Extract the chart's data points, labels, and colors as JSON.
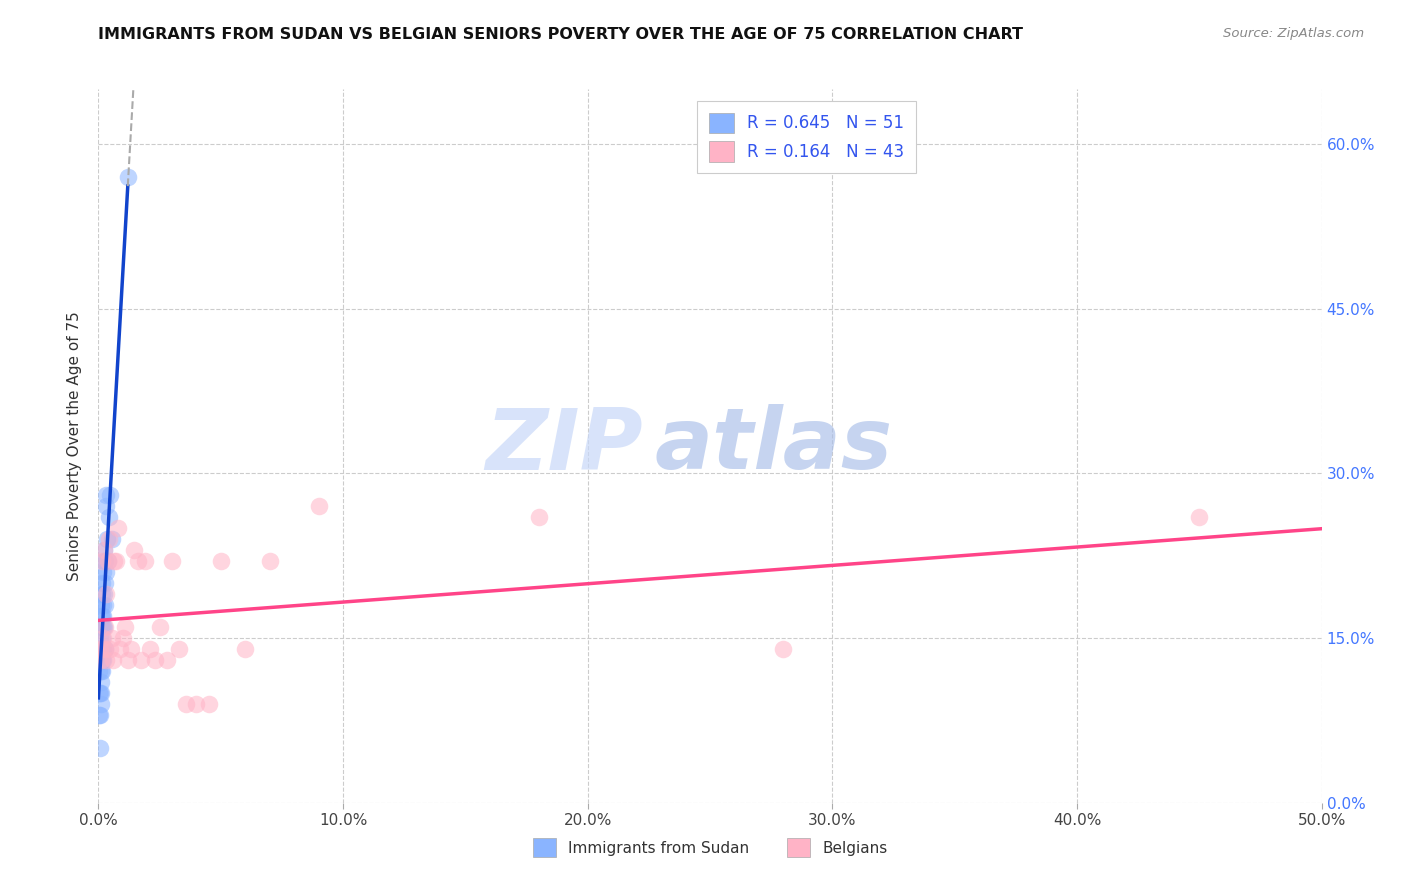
{
  "title": "IMMIGRANTS FROM SUDAN VS BELGIAN SENIORS POVERTY OVER THE AGE OF 75 CORRELATION CHART",
  "source": "Source: ZipAtlas.com",
  "ylabel_label": "Seniors Poverty Over the Age of 75",
  "xlim": [
    0.0,
    0.5
  ],
  "ylim": [
    0.0,
    0.65
  ],
  "xticks": [
    0.0,
    0.1,
    0.2,
    0.3,
    0.4,
    0.5
  ],
  "xticklabels": [
    "0.0%",
    "10.0%",
    "20.0%",
    "30.0%",
    "40.0%",
    "50.0%"
  ],
  "yticks_right": [
    0.0,
    0.15,
    0.3,
    0.45,
    0.6
  ],
  "ytick_right_labels": [
    "0.0%",
    "15.0%",
    "30.0%",
    "45.0%",
    "60.0%"
  ],
  "legend_R1": "R = 0.645",
  "legend_N1": "N = 51",
  "legend_R2": "R = 0.164",
  "legend_N2": "N = 43",
  "color_blue": "#8AB4FF",
  "color_pink": "#FFB3C6",
  "color_trendline_blue": "#1144CC",
  "color_trendline_pink": "#FF4488",
  "color_extrapolation": "#AAAAAA",
  "watermark_zip": "ZIP",
  "watermark_atlas": "atlas",
  "sudan_x": [
    0.0002,
    0.0003,
    0.0004,
    0.0005,
    0.0005,
    0.0006,
    0.0006,
    0.0007,
    0.0007,
    0.0008,
    0.0008,
    0.0009,
    0.0009,
    0.001,
    0.001,
    0.001,
    0.0011,
    0.0011,
    0.0012,
    0.0012,
    0.0013,
    0.0013,
    0.0014,
    0.0014,
    0.0015,
    0.0015,
    0.0016,
    0.0016,
    0.0017,
    0.0017,
    0.0018,
    0.0018,
    0.0019,
    0.002,
    0.0021,
    0.0022,
    0.0023,
    0.0024,
    0.0025,
    0.0026,
    0.0027,
    0.0028,
    0.003,
    0.0032,
    0.0033,
    0.0035,
    0.0038,
    0.0042,
    0.0047,
    0.0055,
    0.012
  ],
  "sudan_y": [
    0.1,
    0.08,
    0.12,
    0.05,
    0.14,
    0.13,
    0.15,
    0.1,
    0.14,
    0.08,
    0.13,
    0.09,
    0.17,
    0.12,
    0.14,
    0.16,
    0.11,
    0.18,
    0.1,
    0.14,
    0.13,
    0.16,
    0.12,
    0.17,
    0.14,
    0.19,
    0.15,
    0.2,
    0.13,
    0.18,
    0.16,
    0.21,
    0.14,
    0.17,
    0.22,
    0.19,
    0.16,
    0.23,
    0.18,
    0.2,
    0.14,
    0.22,
    0.27,
    0.28,
    0.21,
    0.24,
    0.22,
    0.26,
    0.28,
    0.24,
    0.57
  ],
  "belgian_x": [
    0.0008,
    0.0012,
    0.0015,
    0.0018,
    0.002,
    0.0022,
    0.0025,
    0.0028,
    0.003,
    0.0033,
    0.0038,
    0.0042,
    0.0048,
    0.0055,
    0.006,
    0.0065,
    0.0072,
    0.008,
    0.009,
    0.01,
    0.011,
    0.012,
    0.0135,
    0.0145,
    0.016,
    0.0175,
    0.019,
    0.021,
    0.023,
    0.025,
    0.028,
    0.03,
    0.033,
    0.036,
    0.04,
    0.045,
    0.05,
    0.06,
    0.07,
    0.09,
    0.18,
    0.28,
    0.45
  ],
  "belgian_y": [
    0.14,
    0.13,
    0.22,
    0.14,
    0.15,
    0.23,
    0.16,
    0.14,
    0.13,
    0.19,
    0.22,
    0.24,
    0.14,
    0.15,
    0.13,
    0.22,
    0.22,
    0.25,
    0.14,
    0.15,
    0.16,
    0.13,
    0.14,
    0.23,
    0.22,
    0.13,
    0.22,
    0.14,
    0.13,
    0.16,
    0.13,
    0.22,
    0.14,
    0.09,
    0.09,
    0.09,
    0.22,
    0.14,
    0.22,
    0.27,
    0.26,
    0.14,
    0.26
  ]
}
